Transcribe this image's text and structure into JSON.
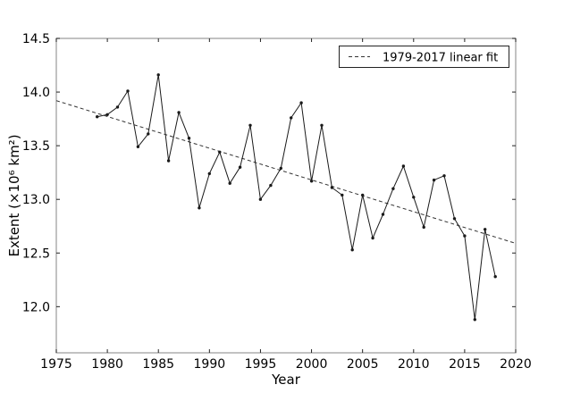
{
  "chart_data": {
    "type": "line",
    "title": "",
    "xlabel": "Year",
    "ylabel": "Extent (×10⁶ km²)",
    "xlim": [
      1975,
      2020
    ],
    "ylim": [
      11.57,
      14.5
    ],
    "xticks": [
      "1975",
      "1980",
      "1985",
      "1990",
      "1995",
      "2000",
      "2005",
      "2010",
      "2015",
      "2020"
    ],
    "yticks": [
      "12.0",
      "12.5",
      "13.0",
      "13.5",
      "14.0",
      "14.5"
    ],
    "grid": false,
    "legend": {
      "position": "upper-right",
      "entries": [
        {
          "label": "1979-2017 linear fit",
          "line_style": "dashed"
        }
      ]
    },
    "series": [
      {
        "name": "annual-extent",
        "style": "solid-markers",
        "x": [
          1979,
          1980,
          1981,
          1982,
          1983,
          1984,
          1985,
          1986,
          1987,
          1988,
          1989,
          1990,
          1991,
          1992,
          1993,
          1994,
          1995,
          1996,
          1997,
          1998,
          1999,
          2000,
          2001,
          2002,
          2003,
          2004,
          2005,
          2006,
          2007,
          2008,
          2009,
          2010,
          2011,
          2012,
          2013,
          2014,
          2015,
          2016,
          2017,
          2018
        ],
        "y": [
          13.77,
          13.79,
          13.86,
          14.01,
          13.49,
          13.61,
          14.16,
          13.36,
          13.81,
          13.57,
          12.92,
          13.24,
          13.44,
          13.15,
          13.3,
          13.69,
          13.0,
          13.13,
          13.29,
          13.76,
          13.9,
          13.17,
          13.69,
          13.11,
          13.04,
          12.53,
          13.04,
          12.64,
          12.86,
          13.1,
          13.31,
          13.02,
          12.74,
          13.18,
          13.22,
          12.82,
          12.66,
          11.88,
          12.72,
          12.28
        ]
      },
      {
        "name": "1979-2017 linear fit",
        "style": "dashed",
        "x": [
          1975,
          2020
        ],
        "y": [
          13.92,
          12.59
        ]
      }
    ],
    "colors": {
      "series": "#1a1a1a",
      "fit": "#333333",
      "frame": "#999999",
      "ticks": "#222222",
      "text": "#000000",
      "background": "#ffffff"
    }
  }
}
